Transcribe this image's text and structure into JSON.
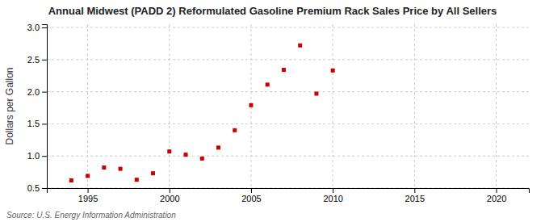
{
  "chart_data": {
    "type": "scatter",
    "title": "Annual Midwest (PADD 2) Reformulated Gasoline Premium Rack Sales Price by All Sellers",
    "ylabel": "Dollars per Gallon",
    "annotations": [
      "Source: U.S. Energy Information Administration"
    ],
    "x": [
      1994,
      1995,
      1996,
      1997,
      1998,
      1999,
      2000,
      2001,
      2002,
      2003,
      2004,
      2005,
      2006,
      2007,
      2008,
      2009,
      2010
    ],
    "values": [
      0.62,
      0.69,
      0.82,
      0.8,
      0.63,
      0.73,
      1.07,
      1.02,
      0.96,
      1.13,
      1.4,
      1.79,
      2.11,
      2.34,
      2.72,
      1.97,
      2.33
    ],
    "color": "#cc0000",
    "marker": "square",
    "xlim": [
      1992.5,
      2022
    ],
    "ylim": [
      0.5,
      3.05
    ],
    "xticks": [
      1995,
      2000,
      2005,
      2010,
      2015,
      2020
    ],
    "yticks": [
      0.5,
      {
        "value": 1,
        "label": "1.0"
      },
      1.5,
      {
        "value": 2,
        "label": "2.0"
      },
      2.5,
      {
        "value": 3,
        "label": "3.0"
      }
    ],
    "grid": true
  }
}
